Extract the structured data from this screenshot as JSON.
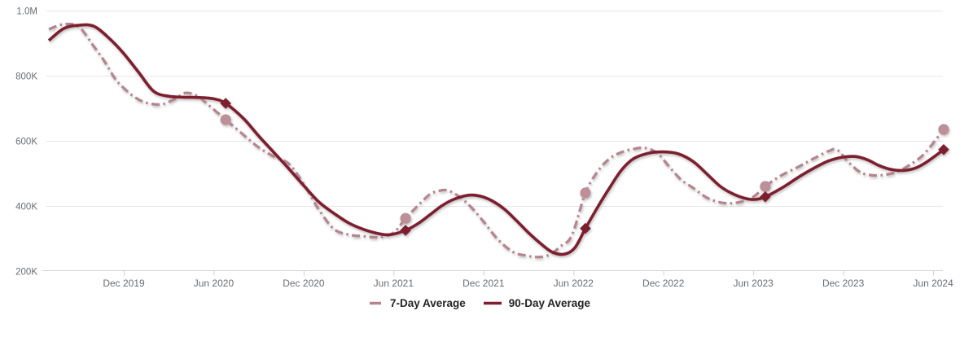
{
  "chart_data": {
    "type": "line",
    "title": "",
    "value_unit": "thousands",
    "x_axis": {
      "tick_labels": [
        "Dec 2019",
        "Jun 2020",
        "Dec 2020",
        "Jun 2021",
        "Dec 2021",
        "Jun 2022",
        "Dec 2022",
        "Jun 2023",
        "Dec 2023",
        "Jun 2024"
      ],
      "tick_months": [
        5,
        11,
        17,
        23,
        29,
        35,
        41,
        47,
        53,
        59
      ],
      "month_zero": "Jul 2019"
    },
    "y_axis": {
      "tick_labels": [
        "1.0M",
        "800K",
        "600K",
        "400K",
        "200K"
      ],
      "tick_values_k": [
        1000,
        800,
        600,
        400,
        200
      ],
      "range_k": [
        200,
        1000
      ]
    },
    "grid": true,
    "legend_position": "bottom-center",
    "colors": {
      "grid": "#e7e7e7",
      "axis": "#d2d2d2",
      "tick": "#cfcfcf",
      "axis_label": "#6a6e73",
      "legend_text": "#242424"
    },
    "series": [
      {
        "name": "7-Day Average",
        "style": "dash-dot",
        "color": "#b4858f",
        "marker": "circle",
        "marker_color": "#bd8f98",
        "points": [
          [
            0,
            943
          ],
          [
            1,
            958
          ],
          [
            2,
            950
          ],
          [
            3,
            890
          ],
          [
            3.7,
            845
          ],
          [
            4.4,
            792
          ],
          [
            5,
            762
          ],
          [
            5.7,
            735
          ],
          [
            6.5,
            717
          ],
          [
            7.5,
            712
          ],
          [
            8.4,
            728
          ],
          [
            9.1,
            747
          ],
          [
            9.9,
            738
          ],
          [
            10.6,
            712
          ],
          [
            11.8,
            665
          ],
          [
            13,
            618
          ],
          [
            14,
            580
          ],
          [
            15,
            552
          ],
          [
            16,
            530
          ],
          [
            17,
            468
          ],
          [
            18,
            390
          ],
          [
            19,
            330
          ],
          [
            20,
            312
          ],
          [
            21,
            307
          ],
          [
            22,
            304
          ],
          [
            23,
            318
          ],
          [
            23.8,
            362
          ],
          [
            24.6,
            400
          ],
          [
            25.4,
            435
          ],
          [
            26,
            446
          ],
          [
            26.6,
            448
          ],
          [
            27.4,
            428
          ],
          [
            28.2,
            395
          ],
          [
            29,
            352
          ],
          [
            30,
            295
          ],
          [
            31,
            258
          ],
          [
            31.8,
            248
          ],
          [
            32.6,
            243
          ],
          [
            33.4,
            250
          ],
          [
            34.2,
            278
          ],
          [
            34.9,
            310
          ],
          [
            35.8,
            440
          ],
          [
            36.6,
            505
          ],
          [
            37.4,
            545
          ],
          [
            38.2,
            565
          ],
          [
            39,
            575
          ],
          [
            39.8,
            578
          ],
          [
            40.6,
            562
          ],
          [
            41.4,
            520
          ],
          [
            42.2,
            480
          ],
          [
            43,
            455
          ],
          [
            43.8,
            428
          ],
          [
            44.6,
            413
          ],
          [
            45.4,
            408
          ],
          [
            46.2,
            413
          ],
          [
            47,
            428
          ],
          [
            47.8,
            460
          ],
          [
            48.8,
            492
          ],
          [
            50,
            520
          ],
          [
            51,
            545
          ],
          [
            52,
            568
          ],
          [
            52.6,
            572
          ],
          [
            53.4,
            532
          ],
          [
            54.2,
            502
          ],
          [
            55,
            494
          ],
          [
            55.8,
            496
          ],
          [
            56.6,
            505
          ],
          [
            57.4,
            525
          ],
          [
            58.4,
            560
          ],
          [
            59.7,
            635
          ]
        ],
        "markers": [
          [
            11.8,
            665
          ],
          [
            23.8,
            362
          ],
          [
            35.8,
            440
          ],
          [
            47.8,
            460
          ],
          [
            59.7,
            635
          ]
        ]
      },
      {
        "name": "90-Day Average",
        "style": "solid",
        "color": "#7d1f2f",
        "marker": "diamond",
        "marker_color": "#7d1f2f",
        "points": [
          [
            0,
            908
          ],
          [
            1,
            945
          ],
          [
            2,
            955
          ],
          [
            3,
            952
          ],
          [
            4,
            916
          ],
          [
            5,
            868
          ],
          [
            6,
            810
          ],
          [
            7,
            752
          ],
          [
            8,
            737
          ],
          [
            9,
            734
          ],
          [
            10,
            733
          ],
          [
            11,
            729
          ],
          [
            11.8,
            715
          ],
          [
            13,
            668
          ],
          [
            14,
            615
          ],
          [
            15,
            565
          ],
          [
            16,
            515
          ],
          [
            17,
            463
          ],
          [
            18,
            413
          ],
          [
            19,
            378
          ],
          [
            20,
            348
          ],
          [
            21,
            328
          ],
          [
            22,
            315
          ],
          [
            22.8,
            312
          ],
          [
            23.8,
            325
          ],
          [
            24.6,
            345
          ],
          [
            25.4,
            372
          ],
          [
            26.2,
            400
          ],
          [
            27,
            420
          ],
          [
            28,
            433
          ],
          [
            28.8,
            430
          ],
          [
            29.6,
            415
          ],
          [
            30.4,
            390
          ],
          [
            31.2,
            355
          ],
          [
            32,
            318
          ],
          [
            32.8,
            285
          ],
          [
            33.6,
            258
          ],
          [
            34.4,
            252
          ],
          [
            35.1,
            272
          ],
          [
            35.8,
            331
          ],
          [
            36.6,
            395
          ],
          [
            37.4,
            455
          ],
          [
            38.2,
            510
          ],
          [
            39,
            545
          ],
          [
            40,
            562
          ],
          [
            41,
            566
          ],
          [
            42,
            560
          ],
          [
            43,
            536
          ],
          [
            44,
            494
          ],
          [
            44.8,
            460
          ],
          [
            45.6,
            438
          ],
          [
            46.4,
            424
          ],
          [
            47.1,
            420
          ],
          [
            47.8,
            428
          ],
          [
            49,
            458
          ],
          [
            50,
            488
          ],
          [
            51,
            515
          ],
          [
            52,
            538
          ],
          [
            53,
            550
          ],
          [
            53.8,
            552
          ],
          [
            54.6,
            542
          ],
          [
            55.4,
            524
          ],
          [
            56.2,
            512
          ],
          [
            57,
            509
          ],
          [
            57.8,
            516
          ],
          [
            58.6,
            536
          ],
          [
            59.7,
            573
          ]
        ],
        "markers": [
          [
            11.8,
            715
          ],
          [
            23.8,
            325
          ],
          [
            35.8,
            331
          ],
          [
            47.8,
            428
          ],
          [
            59.7,
            573
          ]
        ]
      }
    ]
  }
}
